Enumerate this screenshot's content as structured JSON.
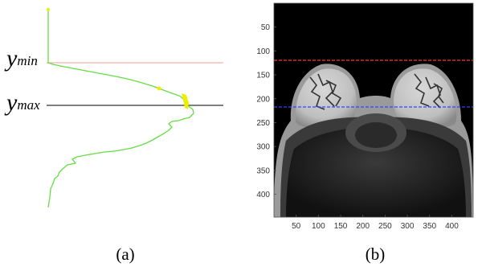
{
  "panel_a": {
    "caption": "(a)",
    "ymin_label": {
      "base": "y",
      "sub": "min"
    },
    "ymax_label": {
      "base": "y",
      "sub": "max"
    },
    "colors": {
      "profile": "#66dd44",
      "highlight": "#eeee00",
      "ymin_line": "#f0b0aa",
      "ymax_line": "#333333"
    }
  },
  "panel_b": {
    "caption": "(b)",
    "colors": {
      "ymin_line": "#ff3333",
      "ymax_line": "#3344ff",
      "background": "#000000"
    }
  },
  "chart_data": {
    "type": "image",
    "x_ticks": [
      50,
      100,
      150,
      200,
      250,
      300,
      350,
      400
    ],
    "y_ticks": [
      50,
      100,
      150,
      200,
      250,
      300,
      350,
      400
    ],
    "xlim": [
      0,
      448
    ],
    "ylim": [
      0,
      448
    ],
    "ymin_line_row": 120,
    "ymax_line_row": 220
  }
}
